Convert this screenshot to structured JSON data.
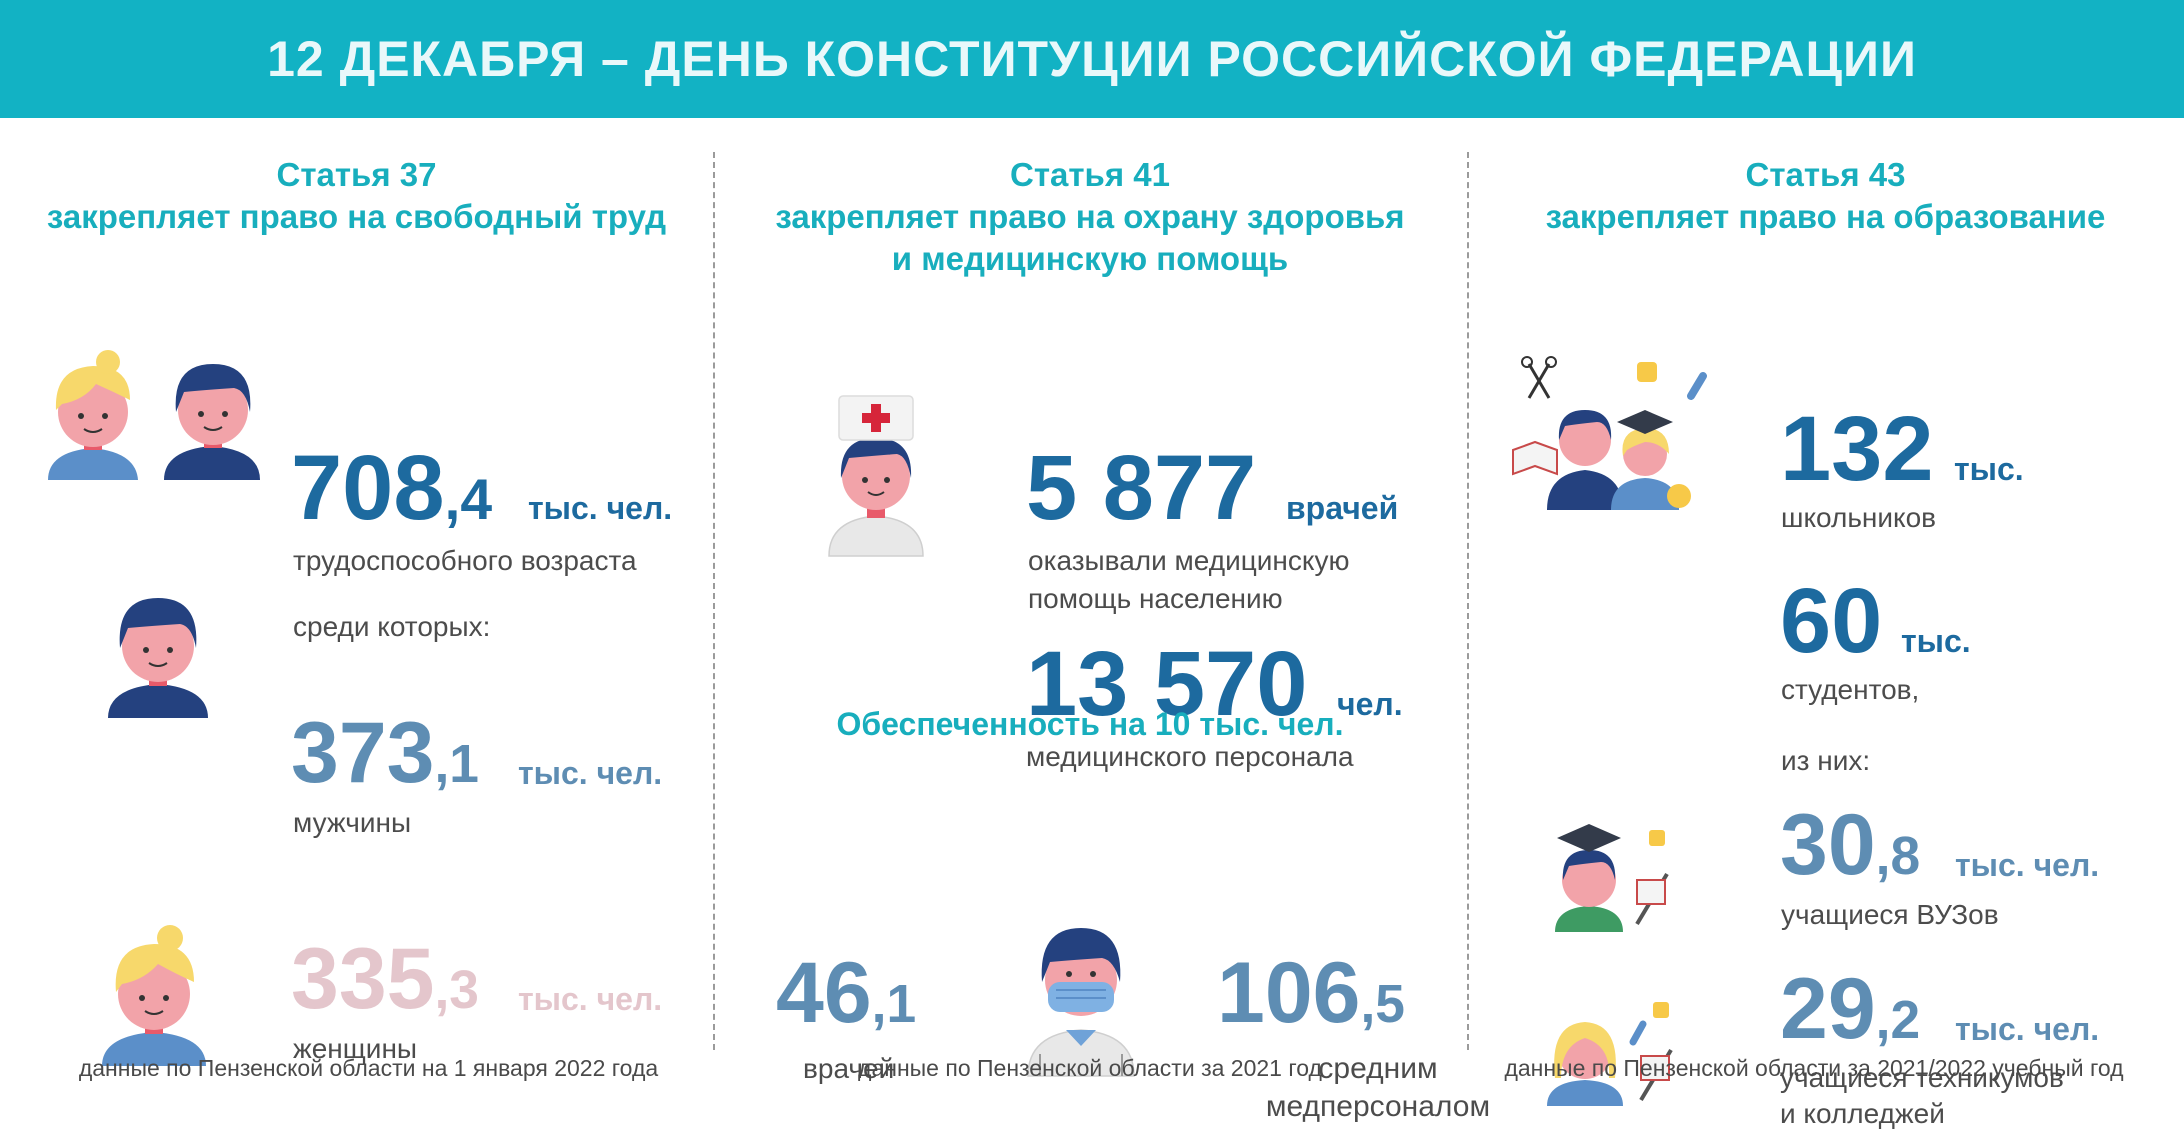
{
  "banner": {
    "title": "12 ДЕКАБРЯ – ДЕНЬ КОНСТИТУЦИИ РОССИЙСКОЙ ФЕДЕРАЦИИ"
  },
  "colors": {
    "banner": "#12b2c4",
    "heading": "#18aebd",
    "number_dark": "#1d6a9f",
    "number_mid": "#5e8db3",
    "number_light": "#e4c6cc"
  },
  "col1": {
    "heading1": "Статья 37",
    "heading2": "закрепляет право на свободный труд",
    "working": {
      "int": "708",
      "dec": ",4",
      "unit": "тыс. чел.",
      "label": "трудоспособного возраста"
    },
    "among": "среди которых:",
    "men": {
      "int": "373",
      "dec": ",1",
      "unit": "тыс. чел.",
      "label": "мужчины"
    },
    "women": {
      "int": "335",
      "dec": ",3",
      "unit": "тыс. чел.",
      "label": "женщины"
    },
    "footer": "данные по Пензенской области на 1 января 2022 года",
    "icons": [
      "woman-man-icon",
      "man-icon",
      "woman-icon"
    ]
  },
  "col2": {
    "heading1": "Статья 41",
    "heading2": "закрепляет право на охрану здоровья",
    "heading3": "и медицинскую помощь",
    "doctors": {
      "value": "5 877",
      "unit": "врачей",
      "label1": "оказывали медицинскую",
      "label2": "помощь населению"
    },
    "staff": {
      "value": "13 570",
      "unit": "чел.",
      "label": "медицинского персонала"
    },
    "provision_title": "Обеспеченность на 10 тыс. чел.",
    "prov_doctors": {
      "int": "46",
      "dec": ",1",
      "label": "врачей"
    },
    "prov_staff": {
      "int": "106",
      "dec": ",5",
      "label1": "средним",
      "label2": "медперсоналом"
    },
    "footer": "данные по Пензенской области за 2021 год",
    "icons": [
      "nurse-icon",
      "masked-doctor-icon"
    ]
  },
  "col3": {
    "heading1": "Статья 43",
    "heading2": "закрепляет право на образование",
    "pupils": {
      "value": "132",
      "unit": "тыс.",
      "label": "школьников"
    },
    "students": {
      "value": "60",
      "unit": "тыс.",
      "label": "студентов,"
    },
    "of_them": "из них:",
    "univ": {
      "int": "30",
      "dec": ",8",
      "unit": "тыс. чел.",
      "label": "учащиеся ВУЗов"
    },
    "colleges": {
      "int": "29",
      "dec": ",2",
      "unit": "тыс. чел.",
      "label1": "учащиеся техникумов",
      "label2": "и колледжей"
    },
    "footer": "данные по Пензенской области за 2021/2022 учебный год",
    "icons": [
      "students-group-icon",
      "graduate-icon",
      "college-student-icon"
    ]
  }
}
